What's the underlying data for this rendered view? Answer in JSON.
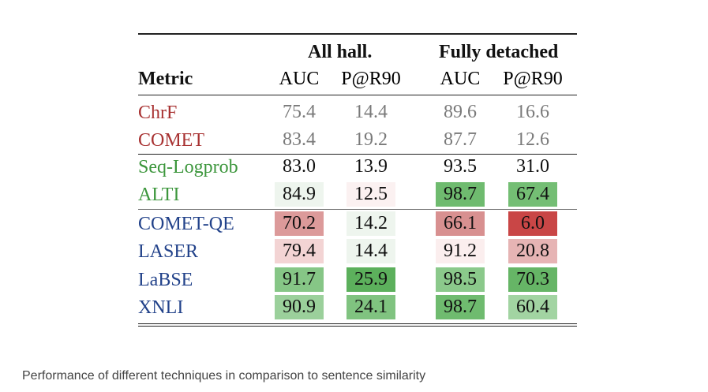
{
  "table": {
    "group_headers": [
      "All hall.",
      "Fully detached"
    ],
    "columns": [
      "Metric",
      "AUC",
      "P@R90",
      "AUC",
      "P@R90"
    ],
    "rows": [
      {
        "metric": "ChrF",
        "color": "#a83232",
        "values": [
          "75.4",
          "14.4",
          "89.6",
          "16.6"
        ],
        "bg": [
          "",
          "",
          "",
          ""
        ],
        "muted": true
      },
      {
        "metric": "COMET",
        "color": "#a83232",
        "values": [
          "83.4",
          "19.2",
          "87.7",
          "12.6"
        ],
        "bg": [
          "",
          "",
          "",
          ""
        ],
        "muted": true
      },
      {
        "metric": "Seq-Logprob",
        "color": "#3c963c",
        "values": [
          "83.0",
          "13.9",
          "93.5",
          "31.0"
        ],
        "bg": [
          "",
          "",
          "",
          ""
        ]
      },
      {
        "metric": "ALTI",
        "color": "#3c963c",
        "values": [
          "84.9",
          "12.5",
          "98.7",
          "67.4"
        ],
        "bg": [
          "#eef5ee",
          "#fbf1f1",
          "#6fbb6f",
          "#74be74"
        ]
      },
      {
        "metric": "COMET-QE",
        "color": "#22428a",
        "values": [
          "70.2",
          "14.2",
          "66.1",
          "6.0"
        ],
        "bg": [
          "#dc9a9a",
          "#eef5ee",
          "#d89090",
          "#c94646"
        ]
      },
      {
        "metric": "LASER",
        "color": "#22428a",
        "values": [
          "79.4",
          "14.4",
          "91.2",
          "20.8"
        ],
        "bg": [
          "#f3d4d4",
          "#eef5ee",
          "#fbeeee",
          "#e6b4b4"
        ]
      },
      {
        "metric": "LaBSE",
        "color": "#22428a",
        "values": [
          "91.7",
          "25.9",
          "98.5",
          "70.3"
        ],
        "bg": [
          "#86c686",
          "#5cb05c",
          "#8bc98b",
          "#66b566"
        ]
      },
      {
        "metric": "XNLI",
        "color": "#22428a",
        "values": [
          "90.9",
          "24.1",
          "98.7",
          "60.4"
        ],
        "bg": [
          "#9bd09b",
          "#80c380",
          "#6fbb6f",
          "#a2d4a2"
        ]
      }
    ]
  },
  "caption": "Performance of different techniques in comparison to sentence similarity"
}
